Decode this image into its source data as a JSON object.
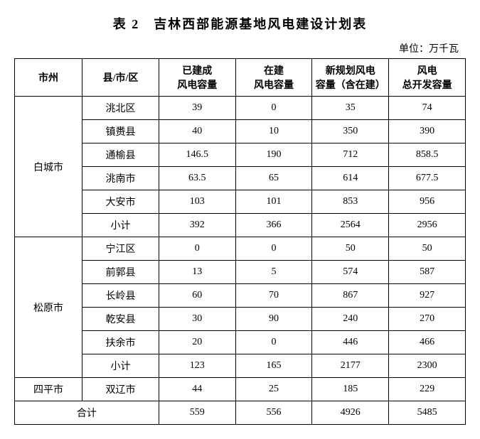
{
  "title": "表 2　吉林西部能源基地风电建设计划表",
  "unit": "单位：万千瓦",
  "headers": {
    "city": "市州",
    "county": "县/市/区",
    "built": "已建成\n风电容量",
    "building": "在建\n风电容量",
    "planned": "新规划风电\n容量（含在建）",
    "total": "风电\n总开发容量"
  },
  "groups": [
    {
      "city": "白城市",
      "rows": [
        {
          "county": "洮北区",
          "built": "39",
          "building": "0",
          "planned": "35",
          "total": "74"
        },
        {
          "county": "镇赉县",
          "built": "40",
          "building": "10",
          "planned": "350",
          "total": "390"
        },
        {
          "county": "通榆县",
          "built": "146.5",
          "building": "190",
          "planned": "712",
          "total": "858.5"
        },
        {
          "county": "洮南市",
          "built": "63.5",
          "building": "65",
          "planned": "614",
          "total": "677.5"
        },
        {
          "county": "大安市",
          "built": "103",
          "building": "101",
          "planned": "853",
          "total": "956"
        },
        {
          "county": "小计",
          "built": "392",
          "building": "366",
          "planned": "2564",
          "total": "2956"
        }
      ]
    },
    {
      "city": "松原市",
      "rows": [
        {
          "county": "宁江区",
          "built": "0",
          "building": "0",
          "planned": "50",
          "total": "50"
        },
        {
          "county": "前郭县",
          "built": "13",
          "building": "5",
          "planned": "574",
          "total": "587"
        },
        {
          "county": "长岭县",
          "built": "60",
          "building": "70",
          "planned": "867",
          "total": "927"
        },
        {
          "county": "乾安县",
          "built": "30",
          "building": "90",
          "planned": "240",
          "total": "270"
        },
        {
          "county": "扶余市",
          "built": "20",
          "building": "0",
          "planned": "446",
          "total": "466"
        },
        {
          "county": "小计",
          "built": "123",
          "building": "165",
          "planned": "2177",
          "total": "2300"
        }
      ]
    },
    {
      "city": "四平市",
      "rows": [
        {
          "county": "双辽市",
          "built": "44",
          "building": "25",
          "planned": "185",
          "total": "229"
        }
      ]
    }
  ],
  "totalRow": {
    "label": "合计",
    "built": "559",
    "building": "556",
    "planned": "4926",
    "total": "5485"
  }
}
